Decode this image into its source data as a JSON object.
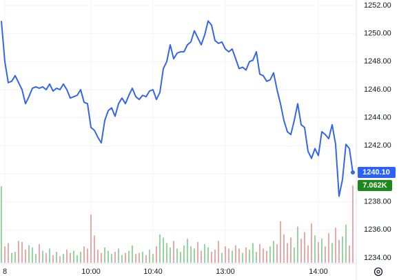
{
  "chart_data": {
    "type": "line",
    "categories": [
      null,
      "8",
      null,
      null,
      null,
      null,
      null,
      null,
      null,
      null,
      null,
      null,
      null,
      null,
      null,
      null,
      null,
      null,
      null,
      null,
      null,
      null,
      null,
      null,
      null,
      null,
      "10:00",
      null,
      null,
      null,
      null,
      null,
      null,
      null,
      null,
      null,
      null,
      null,
      null,
      null,
      null,
      null,
      null,
      null,
      "10:40",
      null,
      null,
      null,
      null,
      null,
      null,
      null,
      null,
      null,
      null,
      null,
      null,
      null,
      null,
      null,
      null,
      null,
      null,
      null,
      null,
      "13:00",
      null,
      null,
      null,
      null,
      null,
      null,
      null,
      null,
      null,
      null,
      null,
      null,
      null,
      null,
      null,
      null,
      null,
      null,
      null,
      null,
      null,
      null,
      null,
      null,
      null,
      null,
      "14:00",
      null,
      null,
      null,
      null,
      null,
      null,
      null,
      null,
      null,
      null
    ],
    "series": [
      {
        "color": "#3366e6",
        "values": [
          1250.9,
          1248.0,
          1246.5,
          1246.6,
          1247.0,
          1246.5,
          1246.0,
          1245.0,
          1245.5,
          1246.1,
          1246.2,
          1246.1,
          1246.2,
          1246.0,
          1246.4,
          1245.9,
          1246.1,
          1246.0,
          1246.4,
          1246.0,
          1245.4,
          1245.5,
          1245.6,
          1246.0,
          1245.1,
          1245.0,
          1243.3,
          1243.1,
          1242.6,
          1242.2,
          1243.8,
          1244.5,
          1244.7,
          1244.1,
          1245.0,
          1245.4,
          1245.0,
          1245.6,
          1246.1,
          1245.5,
          1245.3,
          1245.6,
          1245.5,
          1245.9,
          1246.0,
          1245.3,
          1245.8,
          1247.5,
          1248.0,
          1249.2,
          1248.2,
          1248.6,
          1248.7,
          1248.7,
          1249.2,
          1249.4,
          1250.2,
          1249.7,
          1249.2,
          1249.9,
          1250.9,
          1250.6,
          1249.5,
          1249.3,
          1249.4,
          1248.9,
          1248.7,
          1248.9,
          1248.2,
          1247.5,
          1247.6,
          1247.4,
          1248.0,
          1248.1,
          1248.7,
          1247.1,
          1247.0,
          1246.6,
          1246.7,
          1247.2,
          1246.0,
          1245.0,
          1243.8,
          1243.0,
          1242.8,
          1243.8,
          1245.0,
          1243.5,
          1243.3,
          1241.6,
          1241.1,
          1241.8,
          1241.3,
          1243.0,
          1242.8,
          1242.5,
          1243.5,
          1242.1,
          1238.4,
          1239.6,
          1242.1,
          1241.8,
          1240.1
        ],
        "last_label": {
          "value": 1240.1,
          "label": "1240.10"
        },
        "label_color": "#2962ff"
      },
      {
        "type": "volume",
        "up_color": "#8ccf95",
        "down_color": "#e8a0a0",
        "label_color": "#1b8a1b",
        "values": [
          7000,
          1500,
          1800,
          900,
          1000,
          2000,
          1900,
          1200,
          1600,
          1400,
          800,
          1700,
          1100,
          900,
          1300,
          700,
          1000,
          600,
          800,
          1200,
          900,
          1100,
          700,
          1000,
          1500,
          1300,
          4400,
          2500,
          1200,
          900,
          1400,
          1100,
          800,
          1000,
          1300,
          700,
          900,
          1100,
          1600,
          800,
          900,
          1000,
          700,
          1200,
          800,
          1500,
          2600,
          2300,
          1800,
          1400,
          2000,
          1300,
          1000,
          1600,
          2200,
          1500,
          1300,
          1900,
          1100,
          1700,
          1400,
          1000,
          1200,
          2000,
          900,
          1500,
          1300,
          1100,
          1600,
          1300,
          900,
          1400,
          1200,
          1800,
          1000,
          1700,
          1300,
          1100,
          1500,
          2000,
          1700,
          3800,
          2600,
          1800,
          2300,
          1400,
          3300,
          2200,
          2800,
          1600,
          3600,
          2500,
          1900,
          2200,
          1500,
          2700,
          1800,
          3200,
          2100,
          2400,
          3500,
          1600,
          7062
        ],
        "last_label": {
          "value": 7062,
          "label": "7.062K"
        }
      }
    ],
    "ylim": [
      1234,
      1252
    ],
    "yticks": [
      {
        "value": 1234,
        "label": "1234.00"
      },
      {
        "value": 1236,
        "label": "1236.00"
      },
      {
        "value": 1238,
        "label": "1238.00"
      },
      {
        "value": 1240,
        "label": "1240.00"
      },
      {
        "value": 1242,
        "label": "1242.00"
      },
      {
        "value": 1244,
        "label": "1244.00"
      },
      {
        "value": 1246,
        "label": "1246.00"
      },
      {
        "value": 1248,
        "label": "1248.00"
      },
      {
        "value": 1250,
        "label": "1250.00"
      },
      {
        "value": 1252,
        "label": "1252.00"
      }
    ],
    "grid": true
  }
}
